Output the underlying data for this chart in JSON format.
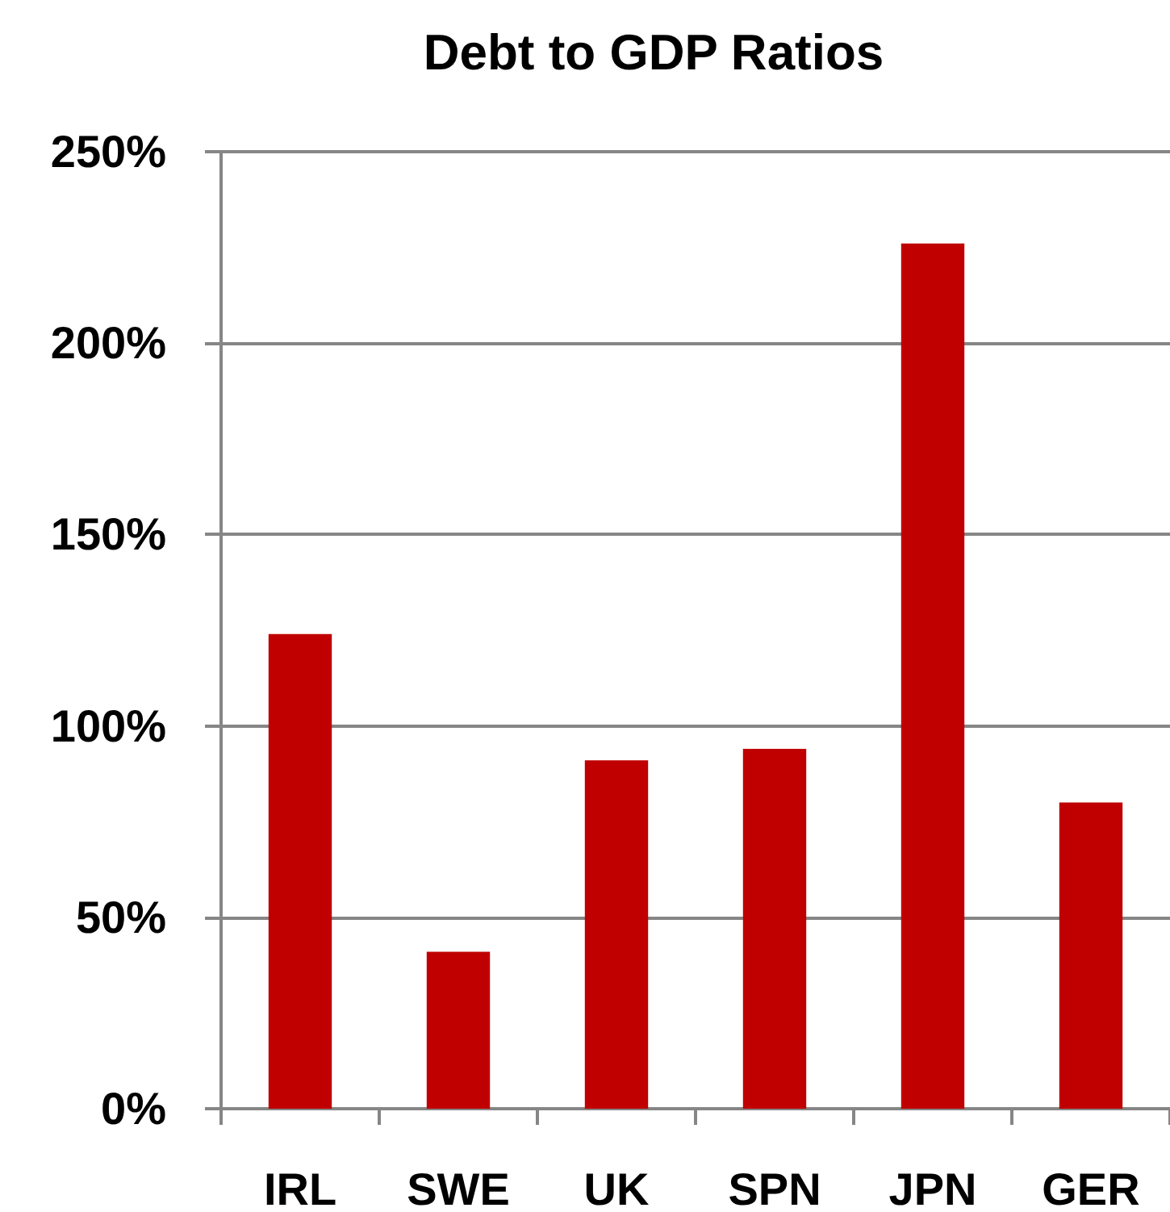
{
  "chart_data": {
    "type": "bar",
    "title": "Debt to GDP Ratios",
    "categories": [
      "IRL",
      "SWE",
      "UK",
      "SPN",
      "JPN",
      "GER"
    ],
    "values": [
      124,
      41,
      91,
      94,
      226,
      80
    ],
    "color": "#c00000",
    "ylim": [
      0,
      250
    ],
    "yticks": [
      {
        "value": 0,
        "label": "0%"
      },
      {
        "value": 50,
        "label": "50%"
      },
      {
        "value": 100,
        "label": "100%"
      },
      {
        "value": 150,
        "label": "150%"
      },
      {
        "value": 200,
        "label": "200%"
      },
      {
        "value": 250,
        "label": "250%"
      }
    ],
    "grid": "y"
  }
}
